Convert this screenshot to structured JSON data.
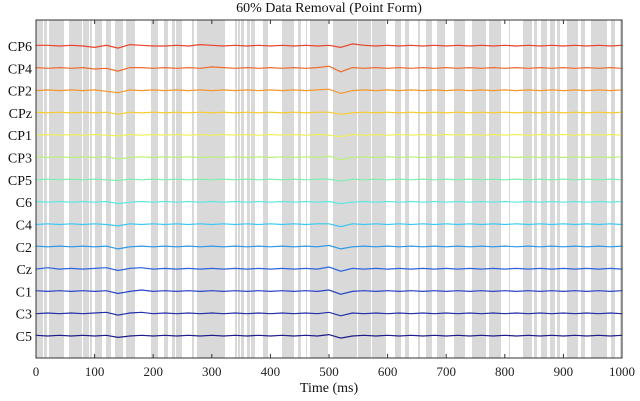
{
  "chart_data": {
    "type": "line",
    "title": "60% Data Removal (Point Form)",
    "xlabel": "Time (ms)",
    "ylabel": "",
    "xlim": [
      0,
      1000
    ],
    "xticks": [
      0,
      100,
      200,
      300,
      400,
      500,
      600,
      700,
      800,
      900,
      1000
    ],
    "xtick_labels": [
      "0",
      "100",
      "200",
      "300",
      "400",
      "500",
      "600",
      "700",
      "800",
      "900",
      "1000"
    ],
    "grid": false,
    "legend": "none",
    "removed_fraction": 0.6,
    "shading_color": "#d9d9d9",
    "series_x": [
      0,
      20,
      40,
      60,
      80,
      100,
      120,
      140,
      160,
      180,
      200,
      220,
      240,
      260,
      280,
      300,
      320,
      340,
      360,
      380,
      400,
      420,
      440,
      460,
      480,
      500,
      520,
      540,
      560,
      580,
      600,
      620,
      640,
      660,
      680,
      700,
      720,
      740,
      760,
      780,
      800,
      820,
      840,
      860,
      880,
      900,
      920,
      940,
      960,
      980,
      1000
    ],
    "series": [
      {
        "name": "CP6",
        "color": "#e8442c",
        "values": [
          0.1,
          0.1,
          0.0,
          0.1,
          0.0,
          -0.2,
          0.1,
          -0.3,
          0.2,
          0.1,
          0.0,
          0.0,
          0.1,
          0.0,
          0.2,
          0.1,
          0.0,
          0.1,
          0.0,
          0.1,
          0.0,
          0.1,
          0.0,
          0.1,
          0.0,
          0.1,
          -0.2,
          0.3,
          0.1,
          0.0,
          0.1,
          0.0,
          0.1,
          0.0,
          0.1,
          0.0,
          0.1,
          0.0,
          0.1,
          0.0,
          0.1,
          0.0,
          0.1,
          0.0,
          0.1,
          0.0,
          0.1,
          0.0,
          0.1,
          0.0,
          0.1
        ]
      },
      {
        "name": "CP4",
        "color": "#f06a2c",
        "values": [
          0.1,
          0.0,
          0.1,
          0.0,
          0.1,
          -0.1,
          0.0,
          -0.4,
          0.1,
          0.1,
          0.0,
          0.1,
          0.0,
          0.1,
          0.0,
          0.2,
          0.1,
          0.0,
          0.1,
          0.0,
          0.1,
          0.0,
          0.1,
          0.0,
          0.1,
          0.3,
          -0.5,
          0.1,
          0.0,
          0.1,
          0.0,
          0.1,
          0.0,
          0.1,
          0.0,
          0.1,
          0.0,
          0.1,
          0.0,
          0.1,
          0.0,
          0.1,
          0.0,
          0.1,
          0.0,
          0.1,
          0.0,
          0.1,
          0.0,
          0.1,
          0.0
        ]
      },
      {
        "name": "CP2",
        "color": "#f7962e",
        "values": [
          0.0,
          0.1,
          0.0,
          0.1,
          0.0,
          0.1,
          -0.1,
          -0.3,
          0.1,
          0.0,
          0.1,
          0.0,
          0.1,
          0.0,
          0.1,
          0.0,
          0.1,
          0.0,
          0.1,
          0.0,
          0.1,
          0.0,
          0.1,
          0.0,
          0.1,
          0.2,
          -0.4,
          0.0,
          0.1,
          0.0,
          0.1,
          0.0,
          0.1,
          0.0,
          0.1,
          0.0,
          0.1,
          0.0,
          0.1,
          0.0,
          0.1,
          0.0,
          0.1,
          0.0,
          0.1,
          0.0,
          0.1,
          0.0,
          0.1,
          0.0,
          0.1
        ]
      },
      {
        "name": "CPz",
        "color": "#f6cc2f",
        "values": [
          0.1,
          0.0,
          0.1,
          0.0,
          0.1,
          0.0,
          0.1,
          -0.2,
          0.1,
          0.0,
          0.1,
          0.0,
          0.1,
          0.0,
          0.1,
          0.0,
          0.1,
          0.0,
          0.1,
          0.0,
          0.1,
          0.0,
          0.1,
          0.0,
          0.1,
          0.1,
          -0.2,
          0.0,
          0.1,
          0.0,
          0.1,
          0.0,
          0.1,
          0.0,
          0.1,
          0.0,
          0.1,
          0.0,
          0.1,
          0.0,
          0.1,
          0.0,
          0.1,
          0.0,
          0.1,
          0.0,
          0.1,
          0.0,
          0.1,
          0.0,
          0.1
        ]
      },
      {
        "name": "CP1",
        "color": "#eef05a",
        "values": [
          0.0,
          0.1,
          0.0,
          0.1,
          0.0,
          0.1,
          0.0,
          -0.1,
          0.1,
          0.0,
          0.1,
          0.0,
          0.1,
          0.0,
          0.1,
          0.0,
          0.1,
          0.0,
          0.1,
          0.0,
          0.1,
          0.0,
          0.1,
          0.0,
          0.1,
          0.0,
          -0.2,
          0.1,
          0.0,
          0.1,
          0.0,
          0.1,
          0.0,
          0.1,
          0.0,
          0.1,
          0.0,
          0.1,
          0.0,
          0.1,
          0.0,
          0.1,
          0.0,
          0.1,
          0.0,
          0.1,
          0.0,
          0.1,
          0.0,
          0.1,
          0.0
        ]
      },
      {
        "name": "CP3",
        "color": "#b9f07c",
        "values": [
          0.1,
          0.0,
          0.1,
          0.0,
          0.1,
          0.0,
          0.1,
          -0.2,
          0.0,
          0.1,
          0.0,
          0.1,
          0.0,
          0.1,
          0.0,
          0.1,
          0.0,
          0.1,
          0.0,
          0.1,
          0.0,
          0.1,
          0.0,
          0.1,
          0.0,
          0.2,
          -0.3,
          0.0,
          0.1,
          0.0,
          0.1,
          0.0,
          0.1,
          0.0,
          0.1,
          0.0,
          0.1,
          0.0,
          0.1,
          0.0,
          0.1,
          0.0,
          0.1,
          0.0,
          0.1,
          0.0,
          0.1,
          0.0,
          0.1,
          0.0,
          0.1
        ]
      },
      {
        "name": "CP5",
        "color": "#7cf0b0",
        "values": [
          0.0,
          0.1,
          0.0,
          0.1,
          0.0,
          0.1,
          0.0,
          -0.1,
          0.1,
          0.0,
          0.1,
          0.0,
          0.1,
          0.0,
          0.1,
          0.0,
          0.1,
          0.0,
          0.1,
          0.0,
          0.1,
          0.0,
          0.1,
          0.0,
          0.1,
          0.1,
          -0.2,
          0.1,
          0.0,
          0.1,
          0.0,
          0.1,
          0.0,
          0.1,
          0.0,
          0.1,
          0.0,
          0.1,
          0.0,
          0.1,
          0.0,
          0.1,
          0.0,
          0.1,
          0.0,
          0.1,
          0.0,
          0.1,
          0.0,
          0.1,
          0.0
        ]
      },
      {
        "name": "C6",
        "color": "#5ce8e0",
        "values": [
          0.1,
          0.0,
          0.1,
          0.0,
          0.1,
          0.0,
          0.1,
          -0.2,
          0.0,
          0.1,
          0.0,
          0.1,
          0.0,
          0.1,
          0.0,
          0.1,
          0.0,
          0.1,
          0.0,
          0.1,
          0.0,
          0.1,
          0.0,
          0.1,
          0.0,
          0.1,
          -0.2,
          0.0,
          0.1,
          0.0,
          0.1,
          0.0,
          0.1,
          0.0,
          0.1,
          0.0,
          0.1,
          0.0,
          0.1,
          0.0,
          0.1,
          0.0,
          0.1,
          0.0,
          0.1,
          0.0,
          0.1,
          0.0,
          0.1,
          0.0,
          0.1
        ]
      },
      {
        "name": "C4",
        "color": "#3cc8f0",
        "values": [
          0.0,
          0.1,
          0.0,
          0.1,
          0.0,
          0.1,
          0.0,
          -0.2,
          0.1,
          0.0,
          0.1,
          0.0,
          0.1,
          0.0,
          0.1,
          0.0,
          0.1,
          0.0,
          0.1,
          0.0,
          0.1,
          0.0,
          0.1,
          0.0,
          0.1,
          0.1,
          -0.3,
          0.1,
          0.0,
          0.1,
          0.0,
          0.1,
          0.0,
          0.1,
          0.0,
          0.1,
          0.0,
          0.1,
          0.0,
          0.1,
          0.0,
          0.1,
          0.0,
          0.1,
          0.0,
          0.1,
          0.0,
          0.1,
          0.0,
          0.1,
          0.0
        ]
      },
      {
        "name": "C2",
        "color": "#2c98e8",
        "values": [
          0.1,
          0.0,
          0.1,
          0.0,
          0.1,
          0.0,
          0.1,
          -0.3,
          0.0,
          0.1,
          0.0,
          0.1,
          0.0,
          0.1,
          0.0,
          0.1,
          0.0,
          0.1,
          0.0,
          0.1,
          0.0,
          0.1,
          0.0,
          0.1,
          0.0,
          0.2,
          -0.3,
          0.0,
          0.1,
          0.0,
          0.1,
          0.0,
          0.1,
          0.0,
          0.1,
          0.0,
          0.1,
          0.0,
          0.1,
          0.0,
          0.1,
          0.0,
          0.1,
          0.0,
          0.1,
          0.0,
          0.1,
          0.0,
          0.1,
          0.0,
          0.1
        ]
      },
      {
        "name": "Cz",
        "color": "#2c64e0",
        "values": [
          0.0,
          0.2,
          0.0,
          0.1,
          0.0,
          0.1,
          0.2,
          -0.2,
          0.1,
          0.2,
          0.0,
          0.1,
          0.0,
          0.1,
          0.0,
          0.1,
          0.0,
          0.1,
          0.0,
          0.1,
          0.0,
          0.1,
          0.0,
          0.1,
          0.0,
          0.3,
          -0.3,
          0.1,
          0.0,
          0.1,
          0.0,
          0.1,
          0.0,
          0.1,
          0.0,
          0.1,
          0.0,
          0.1,
          0.0,
          0.1,
          0.0,
          0.1,
          0.0,
          0.1,
          0.0,
          0.1,
          0.0,
          0.1,
          0.0,
          0.1,
          0.0
        ]
      },
      {
        "name": "C1",
        "color": "#2844c8",
        "values": [
          0.1,
          0.0,
          0.1,
          0.0,
          0.1,
          0.0,
          0.1,
          -0.3,
          0.0,
          0.2,
          0.0,
          0.1,
          0.0,
          0.1,
          0.0,
          0.1,
          0.0,
          0.1,
          0.0,
          0.1,
          0.0,
          0.1,
          0.0,
          0.1,
          0.0,
          0.2,
          -0.4,
          0.0,
          0.1,
          0.0,
          0.1,
          0.0,
          0.1,
          0.0,
          0.1,
          0.0,
          0.1,
          0.0,
          0.1,
          0.0,
          0.1,
          0.0,
          0.1,
          0.0,
          0.1,
          0.0,
          0.1,
          0.0,
          0.1,
          0.0,
          0.1
        ]
      },
      {
        "name": "C3",
        "color": "#2230a8",
        "values": [
          0.0,
          0.1,
          0.0,
          0.1,
          0.0,
          0.1,
          0.2,
          -0.2,
          0.1,
          0.2,
          0.0,
          0.1,
          0.0,
          0.1,
          0.0,
          0.1,
          0.0,
          0.1,
          0.0,
          0.1,
          0.0,
          0.1,
          0.0,
          0.1,
          0.0,
          0.2,
          -0.3,
          0.1,
          0.0,
          0.1,
          0.0,
          0.1,
          0.0,
          0.1,
          0.0,
          0.1,
          0.0,
          0.1,
          0.0,
          0.1,
          0.0,
          0.1,
          0.0,
          0.1,
          0.0,
          0.1,
          0.0,
          0.1,
          0.0,
          0.1,
          0.0
        ]
      },
      {
        "name": "C5",
        "color": "#1c1c8c",
        "values": [
          0.1,
          0.0,
          0.1,
          0.0,
          0.1,
          0.0,
          0.1,
          -0.2,
          0.0,
          0.1,
          0.0,
          0.1,
          0.0,
          0.1,
          0.0,
          0.1,
          0.0,
          0.1,
          0.0,
          0.1,
          0.0,
          0.1,
          0.0,
          0.1,
          0.0,
          0.2,
          -0.3,
          0.0,
          0.1,
          0.0,
          0.1,
          0.0,
          0.1,
          0.0,
          0.1,
          0.0,
          0.1,
          0.0,
          0.1,
          0.0,
          0.1,
          0.0,
          0.1,
          0.0,
          0.1,
          0.0,
          0.1,
          0.0,
          0.1,
          0.0,
          0.1
        ]
      }
    ]
  }
}
